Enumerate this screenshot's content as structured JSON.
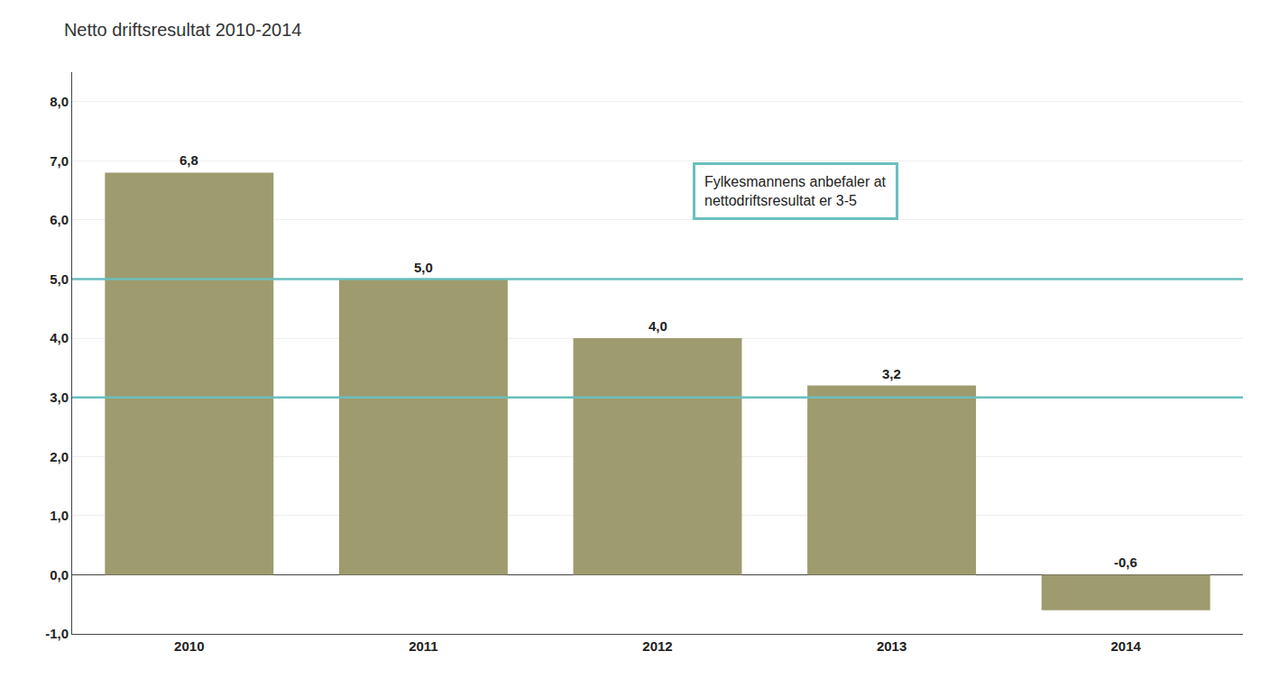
{
  "chart_data": {
    "type": "bar",
    "title": "Netto driftsresultat 2010-2014",
    "categories": [
      "2010",
      "2011",
      "2012",
      "2013",
      "2014"
    ],
    "values": [
      6.8,
      5.0,
      4.0,
      3.2,
      -0.6
    ],
    "value_labels": [
      "6,8",
      "5,0",
      "4,0",
      "3,2",
      "-0,6"
    ],
    "data_labels": true,
    "color": "#9e9b6e",
    "reference_lines": [
      {
        "value": 3.0,
        "color": "#6abfbf"
      },
      {
        "value": 5.0,
        "color": "#6abfbf"
      }
    ],
    "annotations": [
      {
        "text": "Fylkesmannens anbefaler at\nnettodriftsresultat er 3-5",
        "color": "#6abfbf"
      }
    ],
    "ylim": [
      -1.0,
      8.5
    ],
    "yticks": [
      {
        "value": -1.0,
        "label": "-1,0"
      },
      {
        "value": 0.0,
        "label": "0,0"
      },
      {
        "value": 1.0,
        "label": "1,0"
      },
      {
        "value": 2.0,
        "label": "2,0"
      },
      {
        "value": 3.0,
        "label": "3,0"
      },
      {
        "value": 4.0,
        "label": "4,0"
      },
      {
        "value": 5.0,
        "label": "5,0"
      },
      {
        "value": 6.0,
        "label": "6,0"
      },
      {
        "value": 7.0,
        "label": "7,0"
      },
      {
        "value": 8.0,
        "label": "8,0"
      }
    ],
    "grid": true
  }
}
